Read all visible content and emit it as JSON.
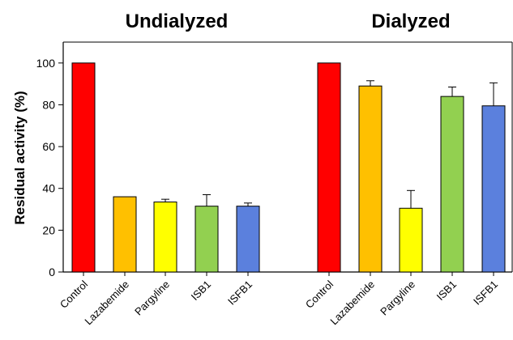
{
  "chart_data": {
    "type": "bar",
    "ylabel": "Residual activity (%)",
    "ylim": [
      0,
      110
    ],
    "yticks": [
      0,
      20,
      40,
      60,
      80,
      100
    ],
    "groups": [
      {
        "title": "Undialyzed",
        "categories": [
          "Control",
          "Lazabemide",
          "Pargyline",
          "ISB1",
          "ISFB1"
        ],
        "values": [
          100,
          36,
          33.5,
          31.5,
          31.5
        ],
        "errors": [
          0,
          0,
          1.3,
          5.5,
          1.5
        ],
        "colors": [
          "#FF0000",
          "#FFC000",
          "#FFFF00",
          "#92D050",
          "#5B80DD"
        ]
      },
      {
        "title": "Dialyzed",
        "categories": [
          "Control",
          "Lazabemide",
          "Pargyline",
          "ISB1",
          "ISFB1"
        ],
        "values": [
          100,
          89,
          30.5,
          84,
          79.5
        ],
        "errors": [
          0,
          2.5,
          8.5,
          4.5,
          11
        ],
        "colors": [
          "#FF0000",
          "#FFC000",
          "#FFFF00",
          "#92D050",
          "#5B80DD"
        ]
      }
    ]
  }
}
